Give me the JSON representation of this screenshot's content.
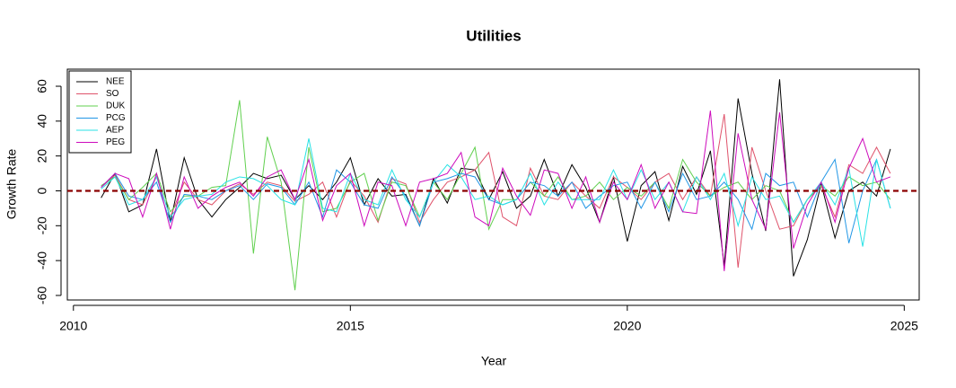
{
  "chart_data": {
    "type": "line",
    "title": "Utilities",
    "x_label": "Year",
    "y_label": "Growth Rate",
    "x": [
      2010.5,
      2010.75,
      2011,
      2011.25,
      2011.5,
      2011.75,
      2012,
      2012.25,
      2012.5,
      2012.75,
      2013,
      2013.25,
      2013.5,
      2013.75,
      2014,
      2014.25,
      2014.5,
      2014.75,
      2015,
      2015.25,
      2015.5,
      2015.75,
      2016,
      2016.25,
      2016.5,
      2016.75,
      2017,
      2017.25,
      2017.5,
      2017.75,
      2018,
      2018.25,
      2018.5,
      2018.75,
      2019,
      2019.25,
      2019.5,
      2019.75,
      2020,
      2020.25,
      2020.5,
      2020.75,
      2021,
      2021.25,
      2021.5,
      2021.75,
      2022,
      2022.25,
      2022.5,
      2022.75,
      2023,
      2023.25,
      2023.5,
      2023.75,
      2024,
      2024.25,
      2024.5,
      2024.75
    ],
    "series": [
      {
        "name": "NEE",
        "color": "#000000",
        "values": [
          -4,
          10,
          -12,
          -8,
          24,
          -18,
          19,
          -5,
          -15,
          -5,
          2,
          10,
          7,
          9,
          -5,
          3,
          -5,
          5,
          19,
          -8,
          7,
          -3,
          -2,
          -20,
          7,
          -7,
          13,
          12,
          -5,
          11,
          -10,
          -3,
          18,
          -3,
          15,
          2,
          -18,
          8,
          -29,
          3,
          11,
          -17,
          14,
          -2,
          23,
          -43,
          53,
          10,
          -23,
          64,
          -49,
          -28,
          4,
          -27,
          0,
          5,
          -3,
          24
        ]
      },
      {
        "name": "SO",
        "color": "#DF536B",
        "values": [
          2,
          9,
          -5,
          -8,
          8,
          -15,
          5,
          -5,
          -8,
          0,
          4,
          -2,
          5,
          3,
          -6,
          -2,
          5,
          -15,
          6,
          -3,
          -18,
          7,
          4,
          -18,
          -5,
          5,
          8,
          12,
          22,
          -15,
          -20,
          13,
          -3,
          -5,
          5,
          -3,
          -10,
          8,
          2,
          -5,
          5,
          10,
          -5,
          8,
          -3,
          44,
          -44,
          25,
          0,
          -22,
          -20,
          -5,
          3,
          -15,
          15,
          10,
          25,
          10
        ]
      },
      {
        "name": "DUK",
        "color": "#61D04F",
        "values": [
          3,
          8,
          -5,
          2,
          10,
          -12,
          -3,
          -3,
          2,
          3,
          52,
          -36,
          31,
          5,
          -57,
          25,
          -12,
          -10,
          5,
          10,
          -17,
          5,
          3,
          -15,
          5,
          -5,
          10,
          25,
          -22,
          -5,
          -5,
          5,
          -3,
          8,
          -5,
          -3,
          5,
          -5,
          2,
          -3,
          5,
          -10,
          18,
          5,
          -3,
          2,
          5,
          -5,
          3,
          0,
          -18,
          -5,
          3,
          -3,
          8,
          3,
          5,
          -5
        ]
      },
      {
        "name": "PCG",
        "color": "#2297E6",
        "values": [
          2,
          10,
          -3,
          -5,
          5,
          -18,
          -2,
          -3,
          -5,
          0,
          3,
          -5,
          4,
          2,
          -8,
          5,
          -15,
          12,
          5,
          -8,
          -10,
          8,
          -3,
          -20,
          5,
          7,
          10,
          8,
          -5,
          -8,
          -5,
          5,
          3,
          -3,
          5,
          -10,
          -3,
          3,
          5,
          -10,
          5,
          -12,
          10,
          -5,
          -3,
          5,
          -5,
          -22,
          10,
          3,
          5,
          -15,
          5,
          18,
          -30,
          0,
          18,
          -10
        ]
      },
      {
        "name": "AEP",
        "color": "#28E2E5",
        "values": [
          1,
          8,
          -8,
          -5,
          8,
          -15,
          -5,
          -3,
          -2,
          5,
          8,
          7,
          3,
          -5,
          -8,
          30,
          -10,
          -12,
          10,
          -5,
          -8,
          12,
          -5,
          -15,
          5,
          15,
          8,
          -5,
          -3,
          -8,
          -5,
          10,
          -8,
          5,
          -5,
          -5,
          -5,
          12,
          -5,
          12,
          -5,
          5,
          -12,
          8,
          -5,
          10,
          -20,
          8,
          -5,
          -3,
          -18,
          -5,
          5,
          -8,
          13,
          -32,
          18,
          -10
        ]
      },
      {
        "name": "PEG",
        "color": "#CD0BBC",
        "values": [
          2,
          10,
          7,
          -15,
          10,
          -22,
          8,
          -10,
          -3,
          2,
          5,
          -3,
          8,
          12,
          -5,
          18,
          -17,
          3,
          10,
          -20,
          5,
          3,
          -20,
          5,
          7,
          10,
          22,
          -15,
          -20,
          13,
          -3,
          -14,
          12,
          10,
          -10,
          8,
          -18,
          5,
          -5,
          15,
          -10,
          5,
          -12,
          -13,
          46,
          -46,
          33,
          -5,
          -22,
          45,
          -33,
          -8,
          5,
          -18,
          13,
          30,
          5,
          8
        ]
      }
    ],
    "reference_line": {
      "value": 0,
      "color": "#8B0000"
    },
    "xlim": [
      2009.89,
      2025.27
    ],
    "ylim": [
      -62.6,
      69.8
    ],
    "xticks": [
      2010,
      2015,
      2020,
      2025
    ],
    "yticks": [
      -60,
      -40,
      -20,
      0,
      20,
      40,
      60
    ],
    "legend": "top-left"
  }
}
